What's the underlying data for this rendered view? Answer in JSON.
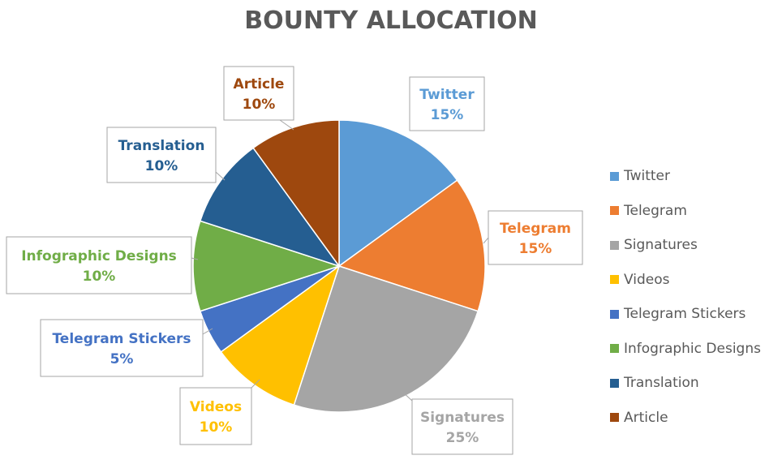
{
  "chart_data": {
    "type": "pie",
    "title": "BOUNTY ALLOCATION",
    "categories": [
      "Twitter",
      "Telegram",
      "Signatures",
      "Videos",
      "Telegram Stickers",
      "Infographic Designs",
      "Translation",
      "Article"
    ],
    "values": [
      15,
      15,
      25,
      10,
      5,
      10,
      10,
      10
    ],
    "value_labels": [
      "15%",
      "15%",
      "25%",
      "10%",
      "5%",
      "10%",
      "10%",
      "10%"
    ],
    "colors": [
      "#5B9BD5",
      "#ED7D31",
      "#A5A5A5",
      "#FFC000",
      "#4472C4",
      "#70AD47",
      "#255E91",
      "#9E480E"
    ],
    "label_colors": [
      "#5B9BD5",
      "#ED7D31",
      "#A5A5A5",
      "#FFC000",
      "#4472C4",
      "#70AD47",
      "#255E91",
      "#9E480E"
    ],
    "legend_position": "right",
    "start_angle": "12 o'clock",
    "direction": "clockwise",
    "data_label_style": "callout"
  }
}
